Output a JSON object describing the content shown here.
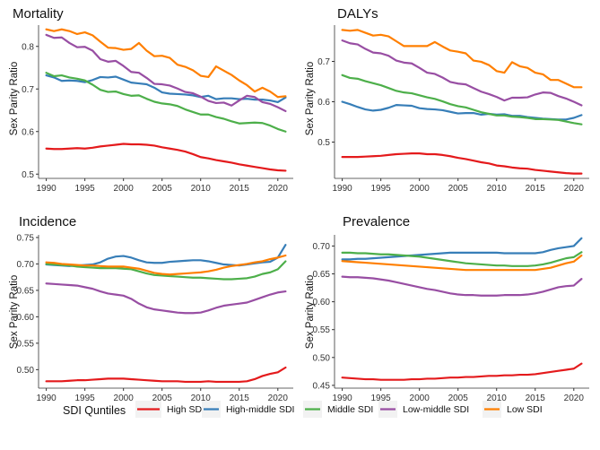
{
  "chart_data": [
    {
      "type": "line",
      "title": "Mortality",
      "xlabel": "",
      "ylabel": "Sex Parity Ratio",
      "xlim": [
        1989,
        2022
      ],
      "ylim": [
        0.49,
        0.85
      ],
      "xticks": [
        1990,
        1995,
        2000,
        2005,
        2010,
        2015,
        2020
      ],
      "yticks": [
        0.5,
        0.6,
        0.7,
        0.8
      ],
      "ytick_labels": [
        "0.5",
        "0.6",
        "0.7",
        "0.8"
      ],
      "x": [
        1990,
        1991,
        1992,
        1993,
        1994,
        1995,
        1996,
        1997,
        1998,
        1999,
        2000,
        2001,
        2002,
        2003,
        2004,
        2005,
        2006,
        2007,
        2008,
        2009,
        2010,
        2011,
        2012,
        2013,
        2014,
        2015,
        2016,
        2017,
        2018,
        2019,
        2020,
        2021
      ],
      "series": [
        {
          "name": "High SDI",
          "values": [
            0.56,
            0.559,
            0.559,
            0.56,
            0.561,
            0.56,
            0.562,
            0.565,
            0.567,
            0.569,
            0.571,
            0.57,
            0.57,
            0.569,
            0.567,
            0.563,
            0.56,
            0.557,
            0.553,
            0.547,
            0.54,
            0.537,
            0.533,
            0.53,
            0.527,
            0.523,
            0.52,
            0.517,
            0.514,
            0.511,
            0.509,
            0.508
          ]
        },
        {
          "name": "High-middle SDI",
          "values": [
            0.732,
            0.727,
            0.719,
            0.72,
            0.719,
            0.716,
            0.721,
            0.728,
            0.727,
            0.729,
            0.722,
            0.715,
            0.713,
            0.711,
            0.703,
            0.692,
            0.689,
            0.688,
            0.687,
            0.685,
            0.681,
            0.684,
            0.676,
            0.678,
            0.678,
            0.676,
            0.677,
            0.675,
            0.675,
            0.673,
            0.669,
            0.68
          ]
        },
        {
          "name": "Middle SDI",
          "values": [
            0.738,
            0.73,
            0.732,
            0.727,
            0.724,
            0.72,
            0.71,
            0.698,
            0.693,
            0.694,
            0.688,
            0.684,
            0.685,
            0.677,
            0.67,
            0.666,
            0.664,
            0.66,
            0.652,
            0.646,
            0.64,
            0.64,
            0.634,
            0.63,
            0.624,
            0.619,
            0.62,
            0.621,
            0.62,
            0.614,
            0.606,
            0.6
          ]
        },
        {
          "name": "Low-middle SDI",
          "values": [
            0.827,
            0.82,
            0.821,
            0.808,
            0.798,
            0.799,
            0.79,
            0.77,
            0.764,
            0.766,
            0.754,
            0.74,
            0.738,
            0.726,
            0.712,
            0.711,
            0.708,
            0.701,
            0.693,
            0.69,
            0.682,
            0.672,
            0.667,
            0.668,
            0.661,
            0.673,
            0.684,
            0.681,
            0.669,
            0.665,
            0.657,
            0.648
          ]
        },
        {
          "name": "Low SDI",
          "values": [
            0.84,
            0.836,
            0.84,
            0.836,
            0.829,
            0.833,
            0.826,
            0.811,
            0.797,
            0.796,
            0.792,
            0.794,
            0.808,
            0.79,
            0.777,
            0.778,
            0.773,
            0.757,
            0.752,
            0.744,
            0.731,
            0.728,
            0.753,
            0.743,
            0.733,
            0.72,
            0.709,
            0.694,
            0.703,
            0.694,
            0.681,
            0.683
          ]
        }
      ]
    },
    {
      "type": "line",
      "title": "DALYs",
      "xlabel": "",
      "ylabel": "Sex Parity Ratio",
      "xlim": [
        1989,
        2022
      ],
      "ylim": [
        0.41,
        0.79
      ],
      "xticks": [
        1990,
        1995,
        2000,
        2005,
        2010,
        2015,
        2020
      ],
      "yticks": [
        0.5,
        0.6,
        0.7
      ],
      "ytick_labels": [
        "0.5",
        "0.6",
        "0.7"
      ],
      "x": [
        1990,
        1991,
        1992,
        1993,
        1994,
        1995,
        1996,
        1997,
        1998,
        1999,
        2000,
        2001,
        2002,
        2003,
        2004,
        2005,
        2006,
        2007,
        2008,
        2009,
        2010,
        2011,
        2012,
        2013,
        2014,
        2015,
        2016,
        2017,
        2018,
        2019,
        2020,
        2021
      ],
      "series": [
        {
          "name": "High SDI",
          "values": [
            0.463,
            0.463,
            0.463,
            0.464,
            0.465,
            0.466,
            0.468,
            0.47,
            0.471,
            0.472,
            0.472,
            0.47,
            0.47,
            0.468,
            0.465,
            0.461,
            0.458,
            0.454,
            0.45,
            0.447,
            0.442,
            0.44,
            0.437,
            0.435,
            0.434,
            0.431,
            0.429,
            0.427,
            0.425,
            0.423,
            0.422,
            0.422
          ]
        },
        {
          "name": "High-middle SDI",
          "values": [
            0.6,
            0.594,
            0.587,
            0.581,
            0.578,
            0.58,
            0.585,
            0.592,
            0.591,
            0.59,
            0.584,
            0.582,
            0.581,
            0.579,
            0.575,
            0.571,
            0.572,
            0.572,
            0.568,
            0.57,
            0.568,
            0.569,
            0.565,
            0.565,
            0.562,
            0.56,
            0.558,
            0.557,
            0.556,
            0.556,
            0.56,
            0.567
          ]
        },
        {
          "name": "Middle SDI",
          "values": [
            0.666,
            0.659,
            0.657,
            0.651,
            0.646,
            0.641,
            0.634,
            0.627,
            0.623,
            0.621,
            0.616,
            0.611,
            0.607,
            0.601,
            0.594,
            0.589,
            0.586,
            0.58,
            0.574,
            0.57,
            0.566,
            0.566,
            0.563,
            0.562,
            0.56,
            0.557,
            0.557,
            0.556,
            0.555,
            0.551,
            0.547,
            0.544
          ]
        },
        {
          "name": "Low-middle SDI",
          "values": [
            0.752,
            0.745,
            0.742,
            0.731,
            0.722,
            0.72,
            0.714,
            0.702,
            0.697,
            0.695,
            0.684,
            0.672,
            0.669,
            0.66,
            0.649,
            0.645,
            0.643,
            0.634,
            0.625,
            0.619,
            0.612,
            0.603,
            0.61,
            0.61,
            0.611,
            0.618,
            0.623,
            0.622,
            0.614,
            0.608,
            0.6,
            0.591
          ]
        },
        {
          "name": "Low SDI",
          "values": [
            0.778,
            0.776,
            0.778,
            0.771,
            0.764,
            0.766,
            0.762,
            0.75,
            0.738,
            0.738,
            0.738,
            0.738,
            0.748,
            0.737,
            0.727,
            0.724,
            0.72,
            0.702,
            0.699,
            0.691,
            0.676,
            0.672,
            0.698,
            0.688,
            0.684,
            0.672,
            0.668,
            0.654,
            0.654,
            0.645,
            0.636,
            0.636
          ]
        }
      ]
    },
    {
      "type": "line",
      "title": "Incidence",
      "xlabel": "",
      "ylabel": "Sex Parity Ratio",
      "xlim": [
        1989,
        2022
      ],
      "ylim": [
        0.465,
        0.755
      ],
      "xticks": [
        1990,
        1995,
        2000,
        2005,
        2010,
        2015,
        2020
      ],
      "yticks": [
        0.5,
        0.55,
        0.6,
        0.65,
        0.7,
        0.75
      ],
      "ytick_labels": [
        "0.50",
        "0.55",
        "0.60",
        "0.65",
        "0.70",
        "0.75"
      ],
      "x": [
        1990,
        1991,
        1992,
        1993,
        1994,
        1995,
        1996,
        1997,
        1998,
        1999,
        2000,
        2001,
        2002,
        2003,
        2004,
        2005,
        2006,
        2007,
        2008,
        2009,
        2010,
        2011,
        2012,
        2013,
        2014,
        2015,
        2016,
        2017,
        2018,
        2019,
        2020,
        2021
      ],
      "series": [
        {
          "name": "High SDI",
          "values": [
            0.478,
            0.478,
            0.478,
            0.479,
            0.48,
            0.48,
            0.481,
            0.482,
            0.483,
            0.483,
            0.483,
            0.482,
            0.481,
            0.48,
            0.479,
            0.478,
            0.478,
            0.478,
            0.477,
            0.477,
            0.477,
            0.478,
            0.477,
            0.477,
            0.477,
            0.477,
            0.478,
            0.482,
            0.488,
            0.492,
            0.495,
            0.504
          ]
        },
        {
          "name": "High-middle SDI",
          "values": [
            0.699,
            0.698,
            0.697,
            0.696,
            0.697,
            0.698,
            0.699,
            0.703,
            0.71,
            0.714,
            0.715,
            0.712,
            0.707,
            0.703,
            0.702,
            0.702,
            0.704,
            0.705,
            0.706,
            0.707,
            0.707,
            0.705,
            0.702,
            0.699,
            0.698,
            0.697,
            0.699,
            0.701,
            0.703,
            0.704,
            0.712,
            0.736
          ]
        },
        {
          "name": "Middle SDI",
          "values": [
            0.7,
            0.699,
            0.698,
            0.697,
            0.695,
            0.694,
            0.693,
            0.692,
            0.692,
            0.692,
            0.691,
            0.69,
            0.686,
            0.682,
            0.679,
            0.678,
            0.677,
            0.676,
            0.675,
            0.674,
            0.674,
            0.673,
            0.672,
            0.671,
            0.671,
            0.672,
            0.673,
            0.676,
            0.681,
            0.684,
            0.69,
            0.705
          ]
        },
        {
          "name": "Low-middle SDI",
          "values": [
            0.663,
            0.662,
            0.661,
            0.66,
            0.659,
            0.656,
            0.653,
            0.648,
            0.644,
            0.642,
            0.64,
            0.634,
            0.625,
            0.618,
            0.614,
            0.612,
            0.61,
            0.608,
            0.607,
            0.607,
            0.608,
            0.612,
            0.617,
            0.621,
            0.623,
            0.625,
            0.627,
            0.632,
            0.637,
            0.642,
            0.646,
            0.648
          ]
        },
        {
          "name": "Low SDI",
          "values": [
            0.703,
            0.702,
            0.7,
            0.699,
            0.698,
            0.697,
            0.697,
            0.696,
            0.695,
            0.695,
            0.695,
            0.693,
            0.691,
            0.687,
            0.683,
            0.681,
            0.68,
            0.681,
            0.682,
            0.683,
            0.684,
            0.686,
            0.689,
            0.693,
            0.696,
            0.698,
            0.7,
            0.703,
            0.705,
            0.709,
            0.712,
            0.716
          ]
        }
      ]
    },
    {
      "type": "line",
      "title": "Prevalence",
      "xlabel": "",
      "ylabel": "Sex Parity Ratio",
      "xlim": [
        1989,
        2022
      ],
      "ylim": [
        0.445,
        0.72
      ],
      "xticks": [
        1990,
        1995,
        2000,
        2005,
        2010,
        2015,
        2020
      ],
      "yticks": [
        0.45,
        0.5,
        0.55,
        0.6,
        0.65,
        0.7
      ],
      "ytick_labels": [
        "0.45",
        "0.50",
        "0.55",
        "0.60",
        "0.65",
        "0.70"
      ],
      "x": [
        1990,
        1991,
        1992,
        1993,
        1994,
        1995,
        1996,
        1997,
        1998,
        1999,
        2000,
        2001,
        2002,
        2003,
        2004,
        2005,
        2006,
        2007,
        2008,
        2009,
        2010,
        2011,
        2012,
        2013,
        2014,
        2015,
        2016,
        2017,
        2018,
        2019,
        2020,
        2021
      ],
      "series": [
        {
          "name": "High SDI",
          "values": [
            0.464,
            0.463,
            0.462,
            0.461,
            0.461,
            0.46,
            0.46,
            0.46,
            0.46,
            0.461,
            0.461,
            0.462,
            0.462,
            0.463,
            0.464,
            0.464,
            0.465,
            0.465,
            0.466,
            0.467,
            0.467,
            0.468,
            0.468,
            0.469,
            0.469,
            0.47,
            0.472,
            0.474,
            0.476,
            0.478,
            0.48,
            0.489
          ]
        },
        {
          "name": "High-middle SDI",
          "values": [
            0.676,
            0.676,
            0.677,
            0.677,
            0.678,
            0.679,
            0.68,
            0.681,
            0.682,
            0.683,
            0.684,
            0.685,
            0.686,
            0.687,
            0.688,
            0.688,
            0.688,
            0.688,
            0.688,
            0.688,
            0.688,
            0.687,
            0.687,
            0.687,
            0.687,
            0.687,
            0.689,
            0.693,
            0.696,
            0.698,
            0.7,
            0.714
          ]
        },
        {
          "name": "Middle SDI",
          "values": [
            0.688,
            0.688,
            0.687,
            0.687,
            0.686,
            0.685,
            0.685,
            0.684,
            0.683,
            0.682,
            0.681,
            0.679,
            0.677,
            0.675,
            0.673,
            0.671,
            0.669,
            0.668,
            0.667,
            0.666,
            0.665,
            0.665,
            0.664,
            0.664,
            0.664,
            0.665,
            0.667,
            0.67,
            0.674,
            0.678,
            0.68,
            0.689
          ]
        },
        {
          "name": "Low-middle SDI",
          "values": [
            0.645,
            0.644,
            0.644,
            0.643,
            0.642,
            0.64,
            0.638,
            0.635,
            0.632,
            0.629,
            0.626,
            0.623,
            0.621,
            0.618,
            0.615,
            0.613,
            0.612,
            0.612,
            0.611,
            0.611,
            0.611,
            0.612,
            0.612,
            0.612,
            0.613,
            0.615,
            0.618,
            0.622,
            0.626,
            0.628,
            0.629,
            0.641
          ]
        },
        {
          "name": "Low SDI",
          "values": [
            0.673,
            0.672,
            0.671,
            0.67,
            0.669,
            0.668,
            0.667,
            0.666,
            0.665,
            0.664,
            0.663,
            0.662,
            0.661,
            0.66,
            0.659,
            0.658,
            0.657,
            0.657,
            0.657,
            0.657,
            0.657,
            0.657,
            0.657,
            0.657,
            0.657,
            0.657,
            0.659,
            0.661,
            0.665,
            0.669,
            0.672,
            0.683
          ]
        }
      ]
    }
  ],
  "legend": {
    "title": "SDI Quntiles",
    "position": "bottom",
    "items": [
      "High SDI",
      "High-middle SDI",
      "Middle SDI",
      "Low-middle SDI",
      "Low SDI"
    ]
  },
  "colors": {
    "High SDI": "#E41A1C",
    "High-middle SDI": "#377EB8",
    "Middle SDI": "#4DAF4A",
    "Low-middle SDI": "#984EA3",
    "Low SDI": "#FF7F00"
  }
}
